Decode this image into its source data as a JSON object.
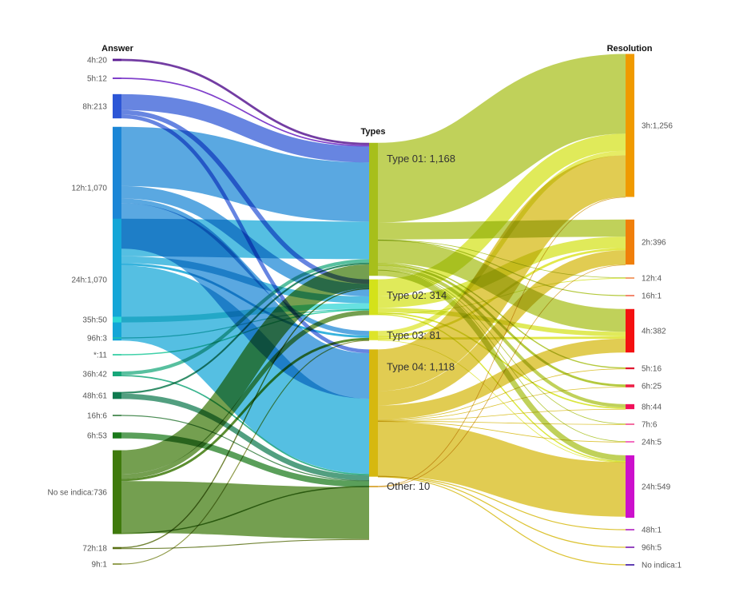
{
  "chart_data": {
    "type": "sankey",
    "columns": {
      "answer": "Answer",
      "types": "Types",
      "resolution": "Resolution"
    },
    "nodes": {
      "answer": [
        {
          "id": "a4h",
          "label": "4h:20",
          "value": 20,
          "color": "#5b1b93"
        },
        {
          "id": "a5h",
          "label": "5h:12",
          "value": 12,
          "color": "#6a1fc2"
        },
        {
          "id": "a8h",
          "label": "8h:213",
          "value": 213,
          "color": "#2c56d6"
        },
        {
          "id": "a12h",
          "label": "12h:1,070",
          "value": 1070,
          "color": "#1b86d6"
        },
        {
          "id": "a24h",
          "label": "24h:1,070",
          "value": 1070,
          "color": "#14a6d7"
        },
        {
          "id": "a35h",
          "label": "35h:50",
          "value": 50,
          "color": "#2cd6d6"
        },
        {
          "id": "a96h",
          "label": "96h:3",
          "value": 3,
          "color": "#1fbfb0"
        },
        {
          "id": "astar",
          "label": "*:11",
          "value": 11,
          "color": "#1fc99a"
        },
        {
          "id": "a36h",
          "label": "36h:42",
          "value": 42,
          "color": "#17a77a"
        },
        {
          "id": "a48h",
          "label": "48h:61",
          "value": 61,
          "color": "#0f7a4f"
        },
        {
          "id": "a16h",
          "label": "16h:6",
          "value": 6,
          "color": "#2f7a3a"
        },
        {
          "id": "a6h",
          "label": "6h:53",
          "value": 53,
          "color": "#1a7a1a"
        },
        {
          "id": "ano",
          "label": "No se indica:736",
          "value": 736,
          "color": "#3f7a0c"
        },
        {
          "id": "a72h",
          "label": "72h:18",
          "value": 18,
          "color": "#5a7014"
        },
        {
          "id": "a9h",
          "label": "9h:1",
          "value": 1,
          "color": "#7d8a2a"
        }
      ],
      "types": [
        {
          "id": "t1",
          "label": "Type 01: 1,168",
          "value": 1168,
          "color": "#a7bf1b"
        },
        {
          "id": "t2",
          "label": "Type 02: 314",
          "value": 314,
          "color": "#d4e21a"
        },
        {
          "id": "t3",
          "label": "Type 03: 81",
          "value": 81,
          "color": "#dde42a"
        },
        {
          "id": "t4",
          "label": "Type 04: 1,118",
          "value": 1118,
          "color": "#d6b80f"
        },
        {
          "id": "to",
          "label": "Other: 10",
          "value": 10,
          "color": "#d39a1a"
        }
      ],
      "resolution": [
        {
          "id": "r3h",
          "label": "3h:1,256",
          "value": 1256,
          "color": "#f09a00"
        },
        {
          "id": "r2h",
          "label": "2h:396",
          "value": 396,
          "color": "#f07f0a"
        },
        {
          "id": "r12h",
          "label": "12h:4",
          "value": 4,
          "color": "#f08a4a"
        },
        {
          "id": "r16h",
          "label": "16h:1",
          "value": 1,
          "color": "#f06a4a"
        },
        {
          "id": "r4h",
          "label": "4h:382",
          "value": 382,
          "color": "#f41010"
        },
        {
          "id": "r5h",
          "label": "5h:16",
          "value": 16,
          "color": "#e01830"
        },
        {
          "id": "r6h",
          "label": "6h:25",
          "value": 25,
          "color": "#ec2046"
        },
        {
          "id": "r8h",
          "label": "8h:44",
          "value": 44,
          "color": "#f0105a"
        },
        {
          "id": "r7h",
          "label": "7h:6",
          "value": 6,
          "color": "#f04a8a"
        },
        {
          "id": "r24a",
          "label": "24h:5",
          "value": 5,
          "color": "#f04ab0"
        },
        {
          "id": "r24b",
          "label": "24h:549",
          "value": 549,
          "color": "#cc10cc"
        },
        {
          "id": "r48h",
          "label": "48h:1",
          "value": 1,
          "color": "#b020c0"
        },
        {
          "id": "r96h",
          "label": "96h:5",
          "value": 5,
          "color": "#7a1ab0"
        },
        {
          "id": "rno",
          "label": "No indica:1",
          "value": 1,
          "color": "#3a10a0"
        }
      ]
    },
    "links_left": [
      [
        "a4h",
        "t1",
        20
      ],
      [
        "a5h",
        "t1",
        12
      ],
      [
        "a8h",
        "t1",
        140
      ],
      [
        "a8h",
        "t2",
        40
      ],
      [
        "a8h",
        "t4",
        33
      ],
      [
        "a12h",
        "t1",
        520
      ],
      [
        "a12h",
        "t2",
        110
      ],
      [
        "a12h",
        "t3",
        40
      ],
      [
        "a12h",
        "t4",
        400
      ],
      [
        "a24h",
        "t1",
        330
      ],
      [
        "a24h",
        "t2",
        60
      ],
      [
        "a24h",
        "t3",
        20
      ],
      [
        "a24h",
        "t4",
        660
      ],
      [
        "a35h",
        "t2",
        50
      ],
      [
        "a96h",
        "t2",
        3
      ],
      [
        "astar",
        "t2",
        11
      ],
      [
        "a36h",
        "t1",
        30
      ],
      [
        "a36h",
        "t4",
        12
      ],
      [
        "a48h",
        "t1",
        15
      ],
      [
        "a48h",
        "t4",
        46
      ],
      [
        "a16h",
        "t4",
        6
      ],
      [
        "a6h",
        "t4",
        53
      ],
      [
        "ano",
        "t1",
        210
      ],
      [
        "ano",
        "t2",
        40
      ],
      [
        "ano",
        "t3",
        21
      ],
      [
        "ano",
        "t4",
        455
      ],
      [
        "ano",
        "to",
        10
      ],
      [
        "a72h",
        "t1",
        10
      ],
      [
        "a72h",
        "t4",
        8
      ],
      [
        "a9h",
        "t3",
        1
      ]
    ],
    "links_right": [
      [
        "t1",
        "r3h",
        700
      ],
      [
        "t1",
        "r2h",
        150
      ],
      [
        "t1",
        "r12h",
        2
      ],
      [
        "t1",
        "r16h",
        1
      ],
      [
        "t1",
        "r4h",
        200
      ],
      [
        "t1",
        "r5h",
        10
      ],
      [
        "t1",
        "r6h",
        20
      ],
      [
        "t1",
        "r8h",
        30
      ],
      [
        "t1",
        "r7h",
        3
      ],
      [
        "t1",
        "r24a",
        2
      ],
      [
        "t1",
        "r24b",
        50
      ],
      [
        "t2",
        "r3h",
        150
      ],
      [
        "t2",
        "r2h",
        100
      ],
      [
        "t2",
        "r4h",
        40
      ],
      [
        "t2",
        "r8h",
        12
      ],
      [
        "t2",
        "r12h",
        2
      ],
      [
        "t2",
        "r24b",
        10
      ],
      [
        "t3",
        "r3h",
        40
      ],
      [
        "t3",
        "r2h",
        20
      ],
      [
        "t3",
        "r4h",
        20
      ],
      [
        "t3",
        "r24b",
        1
      ],
      [
        "t4",
        "r3h",
        366
      ],
      [
        "t4",
        "r2h",
        126
      ],
      [
        "t4",
        "r4h",
        122
      ],
      [
        "t4",
        "r5h",
        6
      ],
      [
        "t4",
        "r6h",
        5
      ],
      [
        "t4",
        "r8h",
        2
      ],
      [
        "t4",
        "r7h",
        3
      ],
      [
        "t4",
        "r24a",
        3
      ],
      [
        "t4",
        "r24b",
        478
      ],
      [
        "t4",
        "r48h",
        1
      ],
      [
        "t4",
        "r96h",
        5
      ],
      [
        "t4",
        "rno",
        1
      ],
      [
        "to",
        "r3h",
        5
      ],
      [
        "to",
        "r2h",
        5
      ]
    ]
  }
}
